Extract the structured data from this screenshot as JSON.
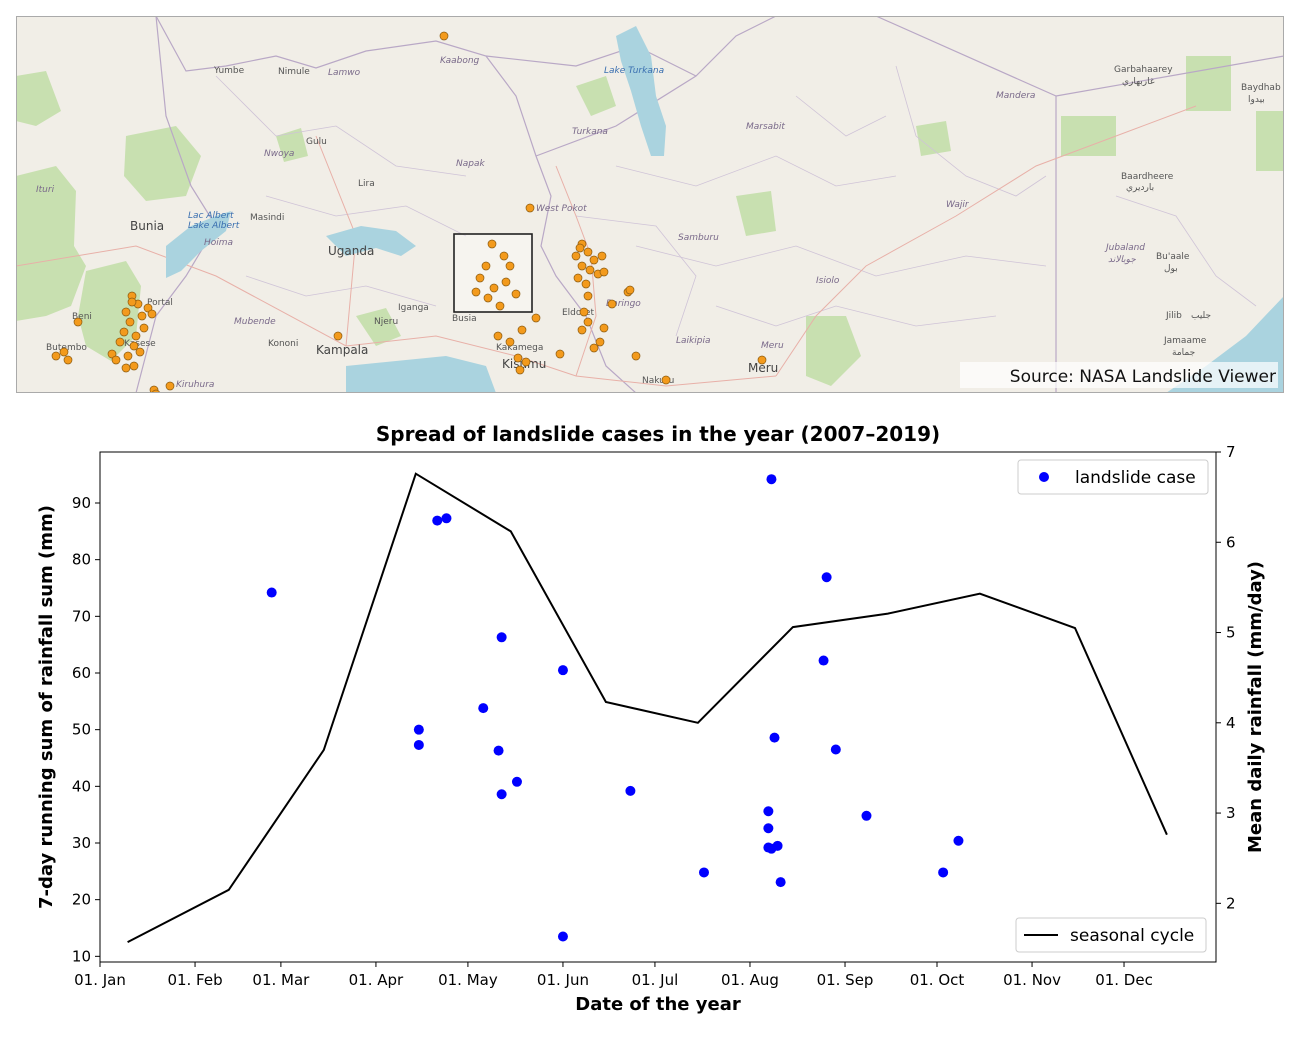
{
  "map": {
    "source": "Source: NASA Landslide Viewer",
    "places": [
      {
        "id": "yumbe",
        "text": "Yumbe",
        "kind": "small"
      },
      {
        "id": "nimule",
        "text": "Nimule",
        "kind": "small"
      },
      {
        "id": "lamwo",
        "text": "Lamwo",
        "kind": "italic"
      },
      {
        "id": "kaabong",
        "text": "Kaabong",
        "kind": "italic"
      },
      {
        "id": "lake-turkana",
        "text": "Lake Turkana",
        "kind": "water"
      },
      {
        "id": "garbahaarey",
        "text": "Garbahaarey",
        "kind": "small"
      },
      {
        "id": "garbahaarey-ar",
        "text": "غاربهاري",
        "kind": "small"
      },
      {
        "id": "baydhab",
        "text": "Baydhab",
        "kind": "small"
      },
      {
        "id": "baydhab-ar",
        "text": "بيدوا",
        "kind": "small"
      },
      {
        "id": "mandera",
        "text": "Mandera",
        "kind": "italic"
      },
      {
        "id": "gulu",
        "text": "Gulu",
        "kind": "small"
      },
      {
        "id": "nwoya",
        "text": "Nwoya",
        "kind": "italic"
      },
      {
        "id": "turkana",
        "text": "Turkana",
        "kind": "italic"
      },
      {
        "id": "marsabit",
        "text": "Marsabit",
        "kind": "italic"
      },
      {
        "id": "napak",
        "text": "Napak",
        "kind": "italic"
      },
      {
        "id": "ituri",
        "text": "Ituri",
        "kind": "italic"
      },
      {
        "id": "lira",
        "text": "Lira",
        "kind": "small"
      },
      {
        "id": "baardheere",
        "text": "Baardheere",
        "kind": "small"
      },
      {
        "id": "baardheere-ar",
        "text": "بارديري",
        "kind": "small"
      },
      {
        "id": "west-pokot",
        "text": "West Pokot",
        "kind": "italic"
      },
      {
        "id": "wajir",
        "text": "Wajir",
        "kind": "italic"
      },
      {
        "id": "masindi",
        "text": "Masindi",
        "kind": "small"
      },
      {
        "id": "lake-albert",
        "text": "Lac Albert",
        "kind": "water"
      },
      {
        "id": "lake-albert-2",
        "text": "Lake Albert",
        "kind": "water"
      },
      {
        "id": "bunia",
        "text": "Bunia",
        "kind": "big"
      },
      {
        "id": "hoima",
        "text": "Hoima",
        "kind": "italic"
      },
      {
        "id": "uganda",
        "text": "Uganda",
        "kind": "big"
      },
      {
        "id": "samburu",
        "text": "Samburu",
        "kind": "italic"
      },
      {
        "id": "jubaland",
        "text": "Jubaland",
        "kind": "italic"
      },
      {
        "id": "jubaland-ar",
        "text": "جوبالاند",
        "kind": "italic"
      },
      {
        "id": "buaale",
        "text": "Bu'aale",
        "kind": "small"
      },
      {
        "id": "buaale-ar",
        "text": "بول",
        "kind": "small"
      },
      {
        "id": "isiolo",
        "text": "Isiolo",
        "kind": "italic"
      },
      {
        "id": "portal",
        "text": "Portal",
        "kind": "small"
      },
      {
        "id": "iganga",
        "text": "Iganga",
        "kind": "small"
      },
      {
        "id": "busia",
        "text": "Busia",
        "kind": "small"
      },
      {
        "id": "eldoret",
        "text": "Eldoret",
        "kind": "small"
      },
      {
        "id": "baringo",
        "text": "Baringo",
        "kind": "italic"
      },
      {
        "id": "beni",
        "text": "Beni",
        "kind": "small"
      },
      {
        "id": "mubende",
        "text": "Mubende",
        "kind": "italic"
      },
      {
        "id": "njeru",
        "text": "Njeru",
        "kind": "small"
      },
      {
        "id": "jilib",
        "text": "Jilib",
        "kind": "small"
      },
      {
        "id": "jilib-ar",
        "text": "جليب",
        "kind": "small"
      },
      {
        "id": "jamaame",
        "text": "Jamaame",
        "kind": "small"
      },
      {
        "id": "jamaame-ar",
        "text": "جمامة",
        "kind": "small"
      },
      {
        "id": "kakamega",
        "text": "Kakamega",
        "kind": "small"
      },
      {
        "id": "laikipia",
        "text": "Laikipia",
        "kind": "italic"
      },
      {
        "id": "meru-county",
        "text": "Meru",
        "kind": "italic"
      },
      {
        "id": "butembo",
        "text": "Butembo",
        "kind": "small"
      },
      {
        "id": "kasese",
        "text": "Kasese",
        "kind": "small"
      },
      {
        "id": "kononi",
        "text": "Kononi",
        "kind": "small"
      },
      {
        "id": "kampala",
        "text": "Kampala",
        "kind": "big"
      },
      {
        "id": "kisumu",
        "text": "Kisumu",
        "kind": "big"
      },
      {
        "id": "meru",
        "text": "Meru",
        "kind": "big"
      },
      {
        "id": "nakuru",
        "text": "Nakuru",
        "kind": "small"
      },
      {
        "id": "kiruhura",
        "text": "Kiruhura",
        "kind": "italic"
      }
    ],
    "colors": {
      "land": "#f1eee7",
      "water": "#aad3df",
      "park": "#c8e0b0",
      "marker": "#f39a1c",
      "marker_edge": "#8a5a10",
      "box": "#222222"
    }
  },
  "chart_data": {
    "type": "scatter",
    "title": "Spread of landslide cases in the year (2007–2019)",
    "xlabel": "Date of the year",
    "ylabel": "7-day running sum of rainfall sum (mm)",
    "y2label": "Mean daily rainfall (mm/day)",
    "xlim": [
      "2019-01-01",
      "2019-12-31"
    ],
    "ylim": [
      9,
      99
    ],
    "y2lim": [
      1.35,
      7.0
    ],
    "xticks": [
      {
        "date": "2019-01-01",
        "label": "01. Jan"
      },
      {
        "date": "2019-02-01",
        "label": "01. Feb"
      },
      {
        "date": "2019-03-01",
        "label": "01. Mar"
      },
      {
        "date": "2019-04-01",
        "label": "01. Apr"
      },
      {
        "date": "2019-05-01",
        "label": "01. May"
      },
      {
        "date": "2019-06-01",
        "label": "01. Jun"
      },
      {
        "date": "2019-07-01",
        "label": "01. Jul"
      },
      {
        "date": "2019-08-01",
        "label": "01. Aug"
      },
      {
        "date": "2019-09-01",
        "label": "01. Sep"
      },
      {
        "date": "2019-10-01",
        "label": "01. Oct"
      },
      {
        "date": "2019-11-01",
        "label": "01. Nov"
      },
      {
        "date": "2019-12-01",
        "label": "01. Dec"
      }
    ],
    "yticks": [
      10,
      20,
      30,
      40,
      50,
      60,
      70,
      80,
      90
    ],
    "y2ticks": [
      2,
      3,
      4,
      5,
      6,
      7
    ],
    "grid": false,
    "series": [
      {
        "name": "landslide case",
        "type": "scatter",
        "axis": "left",
        "color": "#0000ff",
        "points": [
          {
            "date": "2019-02-26",
            "value": 74.2
          },
          {
            "date": "2019-04-15",
            "value": 50.0
          },
          {
            "date": "2019-04-15",
            "value": 47.3
          },
          {
            "date": "2019-04-21",
            "value": 86.9
          },
          {
            "date": "2019-04-24",
            "value": 87.3
          },
          {
            "date": "2019-05-06",
            "value": 53.8
          },
          {
            "date": "2019-05-11",
            "value": 46.3
          },
          {
            "date": "2019-05-12",
            "value": 66.3
          },
          {
            "date": "2019-05-12",
            "value": 38.6
          },
          {
            "date": "2019-05-17",
            "value": 40.8
          },
          {
            "date": "2019-06-01",
            "value": 60.5
          },
          {
            "date": "2019-06-01",
            "value": 13.5
          },
          {
            "date": "2019-06-23",
            "value": 39.2
          },
          {
            "date": "2019-07-17",
            "value": 24.8
          },
          {
            "date": "2019-08-07",
            "value": 35.6
          },
          {
            "date": "2019-08-07",
            "value": 32.6
          },
          {
            "date": "2019-08-07",
            "value": 29.2
          },
          {
            "date": "2019-08-08",
            "value": 94.2
          },
          {
            "date": "2019-08-08",
            "value": 29.0
          },
          {
            "date": "2019-08-09",
            "value": 48.6
          },
          {
            "date": "2019-08-10",
            "value": 29.5
          },
          {
            "date": "2019-08-11",
            "value": 23.1
          },
          {
            "date": "2019-08-25",
            "value": 62.2
          },
          {
            "date": "2019-08-26",
            "value": 76.9
          },
          {
            "date": "2019-08-29",
            "value": 46.5
          },
          {
            "date": "2019-09-08",
            "value": 34.8
          },
          {
            "date": "2019-10-03",
            "value": 24.8
          },
          {
            "date": "2019-10-08",
            "value": 30.4
          }
        ]
      },
      {
        "name": "seasonal cycle",
        "type": "line",
        "axis": "right",
        "color": "#000000",
        "points": [
          {
            "date": "2019-01-10",
            "value": 1.57
          },
          {
            "date": "2019-02-12",
            "value": 2.15
          },
          {
            "date": "2019-03-15",
            "value": 3.7
          },
          {
            "date": "2019-04-14",
            "value": 6.76
          },
          {
            "date": "2019-05-15",
            "value": 6.12
          },
          {
            "date": "2019-06-15",
            "value": 4.23
          },
          {
            "date": "2019-07-15",
            "value": 4.0
          },
          {
            "date": "2019-08-15",
            "value": 5.06
          },
          {
            "date": "2019-09-15",
            "value": 5.21
          },
          {
            "date": "2019-10-15",
            "value": 5.43
          },
          {
            "date": "2019-11-15",
            "value": 5.05
          },
          {
            "date": "2019-12-15",
            "value": 2.76
          }
        ]
      }
    ],
    "legends": [
      {
        "series": "landslide case",
        "placement": "upper right"
      },
      {
        "series": "seasonal cycle",
        "placement": "lower right"
      }
    ]
  }
}
